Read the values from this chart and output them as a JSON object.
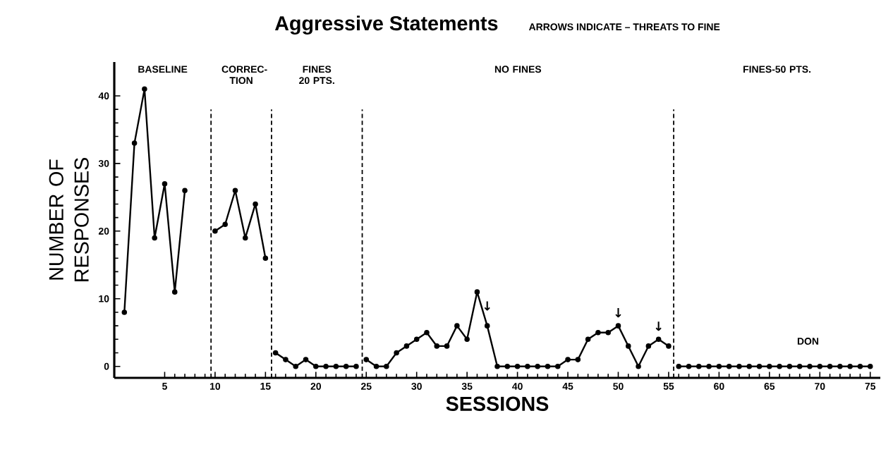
{
  "chart_data": {
    "type": "line",
    "title": "Aggressive Statements",
    "subtitle": "ARROWS INDICATE – THREATS TO FINE",
    "xlabel": "SESSIONS",
    "ylabel": "NUMBER OF RESPONSES",
    "xlim": [
      0,
      76
    ],
    "ylim": [
      -1.7,
      45
    ],
    "xticks": [
      5,
      10,
      15,
      20,
      25,
      30,
      35,
      40,
      45,
      50,
      55,
      60,
      65,
      70,
      75
    ],
    "yticks": [
      0,
      10,
      20,
      30,
      40
    ],
    "series": [
      {
        "color": "#000000",
        "x": [
          1,
          2,
          3,
          4,
          5,
          6,
          7
        ],
        "values": [
          8,
          33,
          41,
          19,
          27,
          11,
          26
        ]
      },
      {
        "color": "#000000",
        "x": [
          10,
          11,
          12,
          13,
          14,
          15
        ],
        "values": [
          20,
          21,
          26,
          19,
          24,
          16
        ]
      },
      {
        "color": "#000000",
        "x": [
          16,
          17,
          18,
          19,
          20,
          21,
          22,
          23,
          24
        ],
        "values": [
          2,
          1,
          0,
          1,
          0,
          0,
          0,
          0,
          0
        ]
      },
      {
        "color": "#000000",
        "x": [
          25,
          26,
          27,
          28,
          29,
          30,
          31,
          32,
          33,
          34,
          35,
          36,
          37,
          38,
          39,
          40,
          41,
          42,
          43,
          44,
          45,
          46,
          47,
          48,
          49,
          50,
          51,
          52,
          53,
          54,
          55
        ],
        "values": [
          1,
          0,
          0,
          2,
          3,
          4,
          5,
          3,
          3,
          6,
          4,
          11,
          6,
          0,
          0,
          0,
          0,
          0,
          0,
          0,
          1,
          1,
          4,
          5,
          5,
          6,
          3,
          0,
          3,
          4,
          3
        ]
      },
      {
        "color": "#000000",
        "x": [
          56,
          57,
          58,
          59,
          60,
          61,
          62,
          63,
          64,
          65,
          66,
          67,
          68,
          69,
          70,
          71,
          72,
          73,
          74,
          75
        ],
        "values": [
          0,
          0,
          0,
          0,
          0,
          0,
          0,
          0,
          0,
          0,
          0,
          0,
          0,
          0,
          0,
          0,
          0,
          0,
          0,
          0
        ]
      }
    ],
    "ref_lines": [
      {
        "axis": "x",
        "value": 9.6,
        "line_style": "dashed"
      },
      {
        "axis": "x",
        "value": 15.6,
        "line_style": "dashed"
      },
      {
        "axis": "x",
        "value": 24.6,
        "line_style": "dashed"
      },
      {
        "axis": "x",
        "value": 55.5,
        "line_style": "dashed"
      }
    ],
    "annotations": [
      "BASELINE",
      "CORREC-TION",
      "FINES 20 PTS.",
      "NO FINES",
      "FINES-50 PTS.",
      {
        "text": "↓",
        "x": 37,
        "y": 8
      },
      {
        "text": "↓",
        "x": 50,
        "y": 7
      },
      {
        "text": "↓",
        "x": 54,
        "y": 5
      },
      "DON"
    ],
    "marker": "circle",
    "line_style": "solid"
  }
}
